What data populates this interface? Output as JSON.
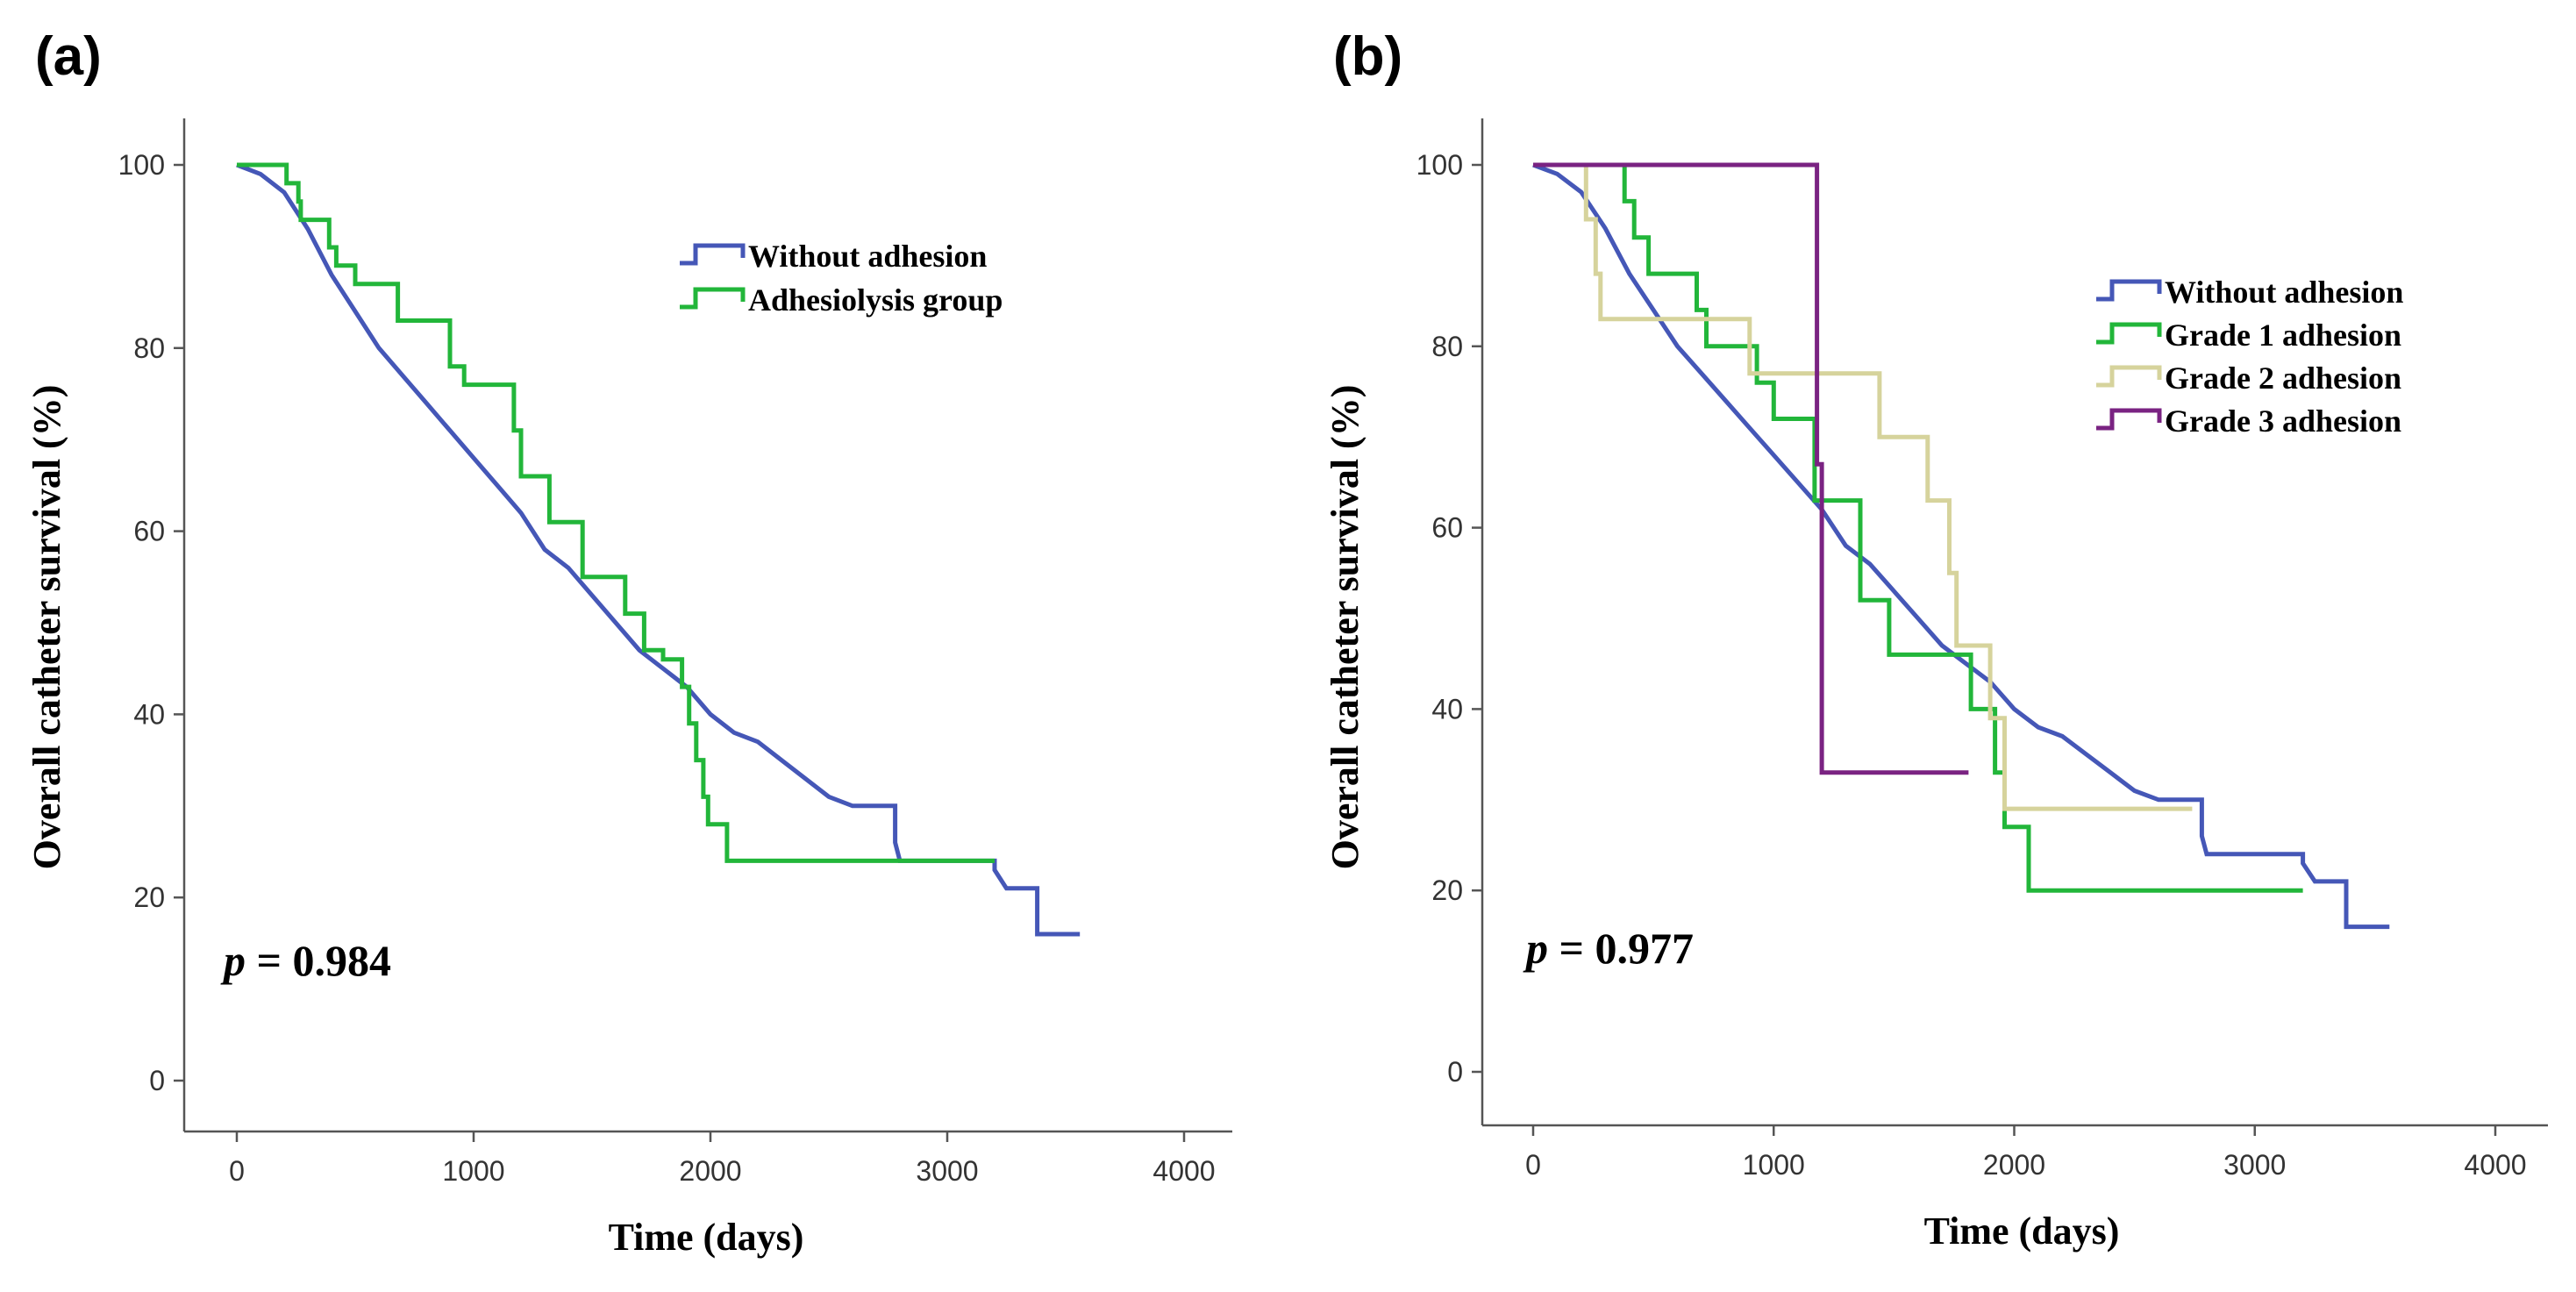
{
  "chart_data": [
    {
      "type": "line",
      "subtype": "kaplan-meier step",
      "panel_label": "(a)",
      "xlabel": "Time (days)",
      "ylabel": "Overall catheter survival (%)",
      "xlim": [
        0,
        4000
      ],
      "ylim": [
        0,
        100
      ],
      "xticks": [
        0,
        1000,
        2000,
        3000,
        4000
      ],
      "yticks": [
        0,
        20,
        40,
        60,
        80,
        100
      ],
      "annotation": {
        "p_label": "p",
        "p_rest": " = 0.984"
      },
      "legend_position": "top-right",
      "series": [
        {
          "name": "Without adhesion",
          "color": "#4557b7",
          "points": [
            [
              0,
              100
            ],
            [
              100,
              99
            ],
            [
              200,
              97
            ],
            [
              300,
              93
            ],
            [
              400,
              88
            ],
            [
              500,
              84
            ],
            [
              600,
              80
            ],
            [
              700,
              77
            ],
            [
              800,
              74
            ],
            [
              900,
              71
            ],
            [
              1000,
              68
            ],
            [
              1100,
              65
            ],
            [
              1200,
              62
            ],
            [
              1300,
              58
            ],
            [
              1400,
              56
            ],
            [
              1500,
              53
            ],
            [
              1600,
              50
            ],
            [
              1700,
              47
            ],
            [
              1800,
              45
            ],
            [
              1900,
              43
            ],
            [
              2000,
              40
            ],
            [
              2100,
              38
            ],
            [
              2200,
              37
            ],
            [
              2300,
              35
            ],
            [
              2400,
              33
            ],
            [
              2500,
              31
            ],
            [
              2600,
              30
            ],
            [
              2780,
              30
            ],
            [
              2780,
              26
            ],
            [
              2800,
              24
            ],
            [
              3200,
              24
            ],
            [
              3200,
              23
            ],
            [
              3250,
              21
            ],
            [
              3380,
              21
            ],
            [
              3380,
              16
            ],
            [
              3560,
              16
            ]
          ]
        },
        {
          "name": "Adhesiolysis group",
          "color": "#22b63a",
          "points": [
            [
              0,
              100
            ],
            [
              210,
              100
            ],
            [
              210,
              98
            ],
            [
              260,
              98
            ],
            [
              260,
              96
            ],
            [
              270,
              96
            ],
            [
              270,
              94
            ],
            [
              390,
              94
            ],
            [
              390,
              91
            ],
            [
              420,
              91
            ],
            [
              420,
              89
            ],
            [
              500,
              89
            ],
            [
              500,
              87
            ],
            [
              680,
              87
            ],
            [
              680,
              83
            ],
            [
              900,
              83
            ],
            [
              900,
              78
            ],
            [
              960,
              78
            ],
            [
              960,
              76
            ],
            [
              1170,
              76
            ],
            [
              1170,
              71
            ],
            [
              1200,
              71
            ],
            [
              1200,
              66
            ],
            [
              1320,
              66
            ],
            [
              1320,
              61
            ],
            [
              1460,
              61
            ],
            [
              1460,
              55
            ],
            [
              1640,
              55
            ],
            [
              1640,
              51
            ],
            [
              1720,
              51
            ],
            [
              1720,
              47
            ],
            [
              1800,
              47
            ],
            [
              1800,
              46
            ],
            [
              1880,
              46
            ],
            [
              1880,
              43
            ],
            [
              1910,
              43
            ],
            [
              1910,
              39
            ],
            [
              1940,
              39
            ],
            [
              1940,
              35
            ],
            [
              1970,
              35
            ],
            [
              1970,
              31
            ],
            [
              1990,
              31
            ],
            [
              1990,
              28
            ],
            [
              2070,
              28
            ],
            [
              2070,
              24
            ],
            [
              3200,
              24
            ]
          ]
        }
      ]
    },
    {
      "type": "line",
      "subtype": "kaplan-meier step",
      "panel_label": "(b)",
      "xlabel": "Time (days)",
      "ylabel": "Overall catheter survival (%)",
      "xlim": [
        0,
        4000
      ],
      "ylim": [
        0,
        100
      ],
      "xticks": [
        0,
        1000,
        2000,
        3000,
        4000
      ],
      "yticks": [
        0,
        20,
        40,
        60,
        80,
        100
      ],
      "annotation": {
        "p_label": "p",
        "p_rest": " = 0.977"
      },
      "legend_position": "top-right",
      "series": [
        {
          "name": "Without adhesion",
          "color": "#4557b7",
          "points": [
            [
              0,
              100
            ],
            [
              100,
              99
            ],
            [
              200,
              97
            ],
            [
              300,
              93
            ],
            [
              400,
              88
            ],
            [
              500,
              84
            ],
            [
              600,
              80
            ],
            [
              700,
              77
            ],
            [
              800,
              74
            ],
            [
              900,
              71
            ],
            [
              1000,
              68
            ],
            [
              1100,
              65
            ],
            [
              1200,
              62
            ],
            [
              1300,
              58
            ],
            [
              1400,
              56
            ],
            [
              1500,
              53
            ],
            [
              1600,
              50
            ],
            [
              1700,
              47
            ],
            [
              1800,
              45
            ],
            [
              1900,
              43
            ],
            [
              2000,
              40
            ],
            [
              2100,
              38
            ],
            [
              2200,
              37
            ],
            [
              2300,
              35
            ],
            [
              2400,
              33
            ],
            [
              2500,
              31
            ],
            [
              2600,
              30
            ],
            [
              2780,
              30
            ],
            [
              2780,
              26
            ],
            [
              2800,
              24
            ],
            [
              3200,
              24
            ],
            [
              3200,
              23
            ],
            [
              3250,
              21
            ],
            [
              3380,
              21
            ],
            [
              3380,
              16
            ],
            [
              3560,
              16
            ]
          ]
        },
        {
          "name": "Grade 1 adhesion",
          "color": "#22b63a",
          "points": [
            [
              0,
              100
            ],
            [
              380,
              100
            ],
            [
              380,
              96
            ],
            [
              420,
              96
            ],
            [
              420,
              92
            ],
            [
              480,
              92
            ],
            [
              480,
              88
            ],
            [
              680,
              88
            ],
            [
              680,
              84
            ],
            [
              720,
              84
            ],
            [
              720,
              80
            ],
            [
              930,
              80
            ],
            [
              930,
              76
            ],
            [
              1000,
              76
            ],
            [
              1000,
              72
            ],
            [
              1170,
              72
            ],
            [
              1170,
              63
            ],
            [
              1360,
              63
            ],
            [
              1360,
              52
            ],
            [
              1480,
              52
            ],
            [
              1480,
              46
            ],
            [
              1820,
              46
            ],
            [
              1820,
              40
            ],
            [
              1920,
              40
            ],
            [
              1920,
              33
            ],
            [
              1960,
              33
            ],
            [
              1960,
              27
            ],
            [
              2060,
              27
            ],
            [
              2060,
              20
            ],
            [
              3200,
              20
            ]
          ]
        },
        {
          "name": "Grade 2 adhesion",
          "color": "#d6d39c",
          "points": [
            [
              0,
              100
            ],
            [
              220,
              100
            ],
            [
              220,
              94
            ],
            [
              260,
              94
            ],
            [
              260,
              88
            ],
            [
              280,
              88
            ],
            [
              280,
              83
            ],
            [
              900,
              83
            ],
            [
              900,
              77
            ],
            [
              1440,
              77
            ],
            [
              1440,
              70
            ],
            [
              1640,
              70
            ],
            [
              1640,
              63
            ],
            [
              1730,
              63
            ],
            [
              1730,
              55
            ],
            [
              1760,
              55
            ],
            [
              1760,
              47
            ],
            [
              1900,
              47
            ],
            [
              1900,
              39
            ],
            [
              1960,
              39
            ],
            [
              1960,
              29
            ],
            [
              2740,
              29
            ]
          ]
        },
        {
          "name": "Grade 3 adhesion",
          "color": "#7a2382",
          "points": [
            [
              0,
              100
            ],
            [
              1180,
              100
            ],
            [
              1180,
              67
            ],
            [
              1200,
              67
            ],
            [
              1200,
              33
            ],
            [
              1810,
              33
            ]
          ]
        }
      ]
    }
  ]
}
